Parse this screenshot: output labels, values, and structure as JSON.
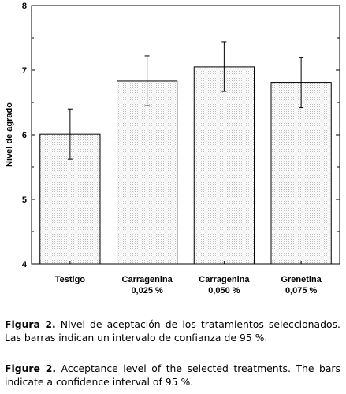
{
  "chart_data": {
    "type": "bar",
    "ylabel": "Nivel de agrado",
    "xlabel": "",
    "ylim": [
      4,
      8
    ],
    "yticks": [
      4,
      5,
      6,
      7,
      8
    ],
    "grid": false,
    "categories": [
      {
        "line1": "Testigo",
        "line2": ""
      },
      {
        "line1": "Carragenina",
        "line2": "0,025 %"
      },
      {
        "line1": "Carragenina",
        "line2": "0,050 %"
      },
      {
        "line1": "Grenetina",
        "line2": "0,075 %"
      }
    ],
    "values": [
      6.01,
      6.83,
      7.05,
      6.81
    ],
    "error_low": [
      5.62,
      6.45,
      6.67,
      6.42
    ],
    "error_high": [
      6.4,
      7.22,
      7.44,
      7.2
    ],
    "bar_fill": "#eeeeee",
    "bar_stroke": "#000000"
  },
  "caption_es": {
    "label": "Figura 2.",
    "text": "Nivel de aceptación de los tratamientos seleccionados. Las barras indican un intervalo de confianza de 95 %."
  },
  "caption_en": {
    "label": "Figure 2.",
    "text": "Acceptance level of the selected treatments. The bars indicate a confidence interval of 95 %."
  }
}
